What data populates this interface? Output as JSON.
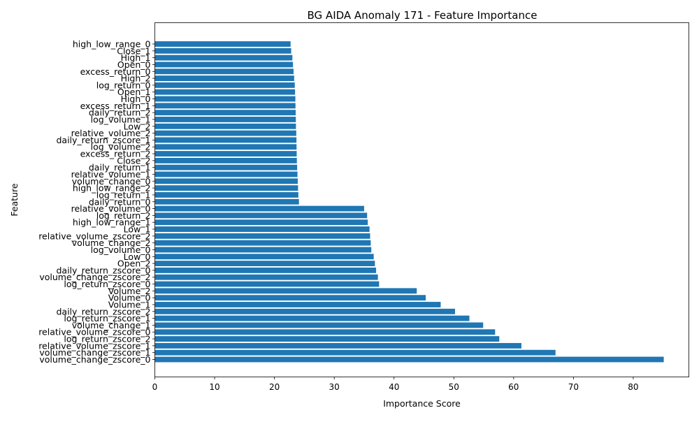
{
  "chart_data": {
    "type": "bar",
    "orientation": "horizontal",
    "title": "BG AIDA Anomaly 171 - Feature Importance",
    "xlabel": "Importance Score",
    "ylabel": "Feature",
    "xlim": [
      0,
      89.3
    ],
    "xticks": [
      0,
      10,
      20,
      30,
      40,
      50,
      60,
      70,
      80
    ],
    "grid": false,
    "bar_color": "#1f77b4",
    "categories": [
      "volume_change_zscore_0",
      "volume_change_zscore_1",
      "relative_volume_zscore_1",
      "log_return_zscore_2",
      "relative_volume_zscore_0",
      "volume_change_1",
      "log_return_zscore_1",
      "daily_return_zscore_2",
      "Volume_1",
      "Volume_0",
      "Volume_2",
      "log_return_zscore_0",
      "volume_change_zscore_2",
      "daily_return_zscore_0",
      "Open_2",
      "Low_0",
      "log_volume_0",
      "volume_change_2",
      "relative_volume_zscore_2",
      "Low_1",
      "high_low_range_1",
      "log_return_2",
      "relative_volume_0",
      "daily_return_0",
      "log_return_1",
      "high_low_range_2",
      "volume_change_0",
      "relative_volume_1",
      "daily_return_1",
      "Close_2",
      "excess_return_2",
      "log_volume_2",
      "daily_return_zscore_1",
      "relative_volume_2",
      "Low_2",
      "log_volume_1",
      "daily_return_2",
      "excess_return_1",
      "High_0",
      "Open_1",
      "log_return_0",
      "High_2",
      "excess_return_0",
      "Open_0",
      "High_1",
      "Close_1",
      "high_low_range_0"
    ],
    "values": [
      85.1,
      67.0,
      61.3,
      57.6,
      56.9,
      54.9,
      52.6,
      50.2,
      47.8,
      45.3,
      43.8,
      37.5,
      37.3,
      37.0,
      36.8,
      36.6,
      36.2,
      36.1,
      36.0,
      35.9,
      35.6,
      35.5,
      35.0,
      24.1,
      24.0,
      23.95,
      23.9,
      23.85,
      23.8,
      23.75,
      23.72,
      23.7,
      23.68,
      23.65,
      23.6,
      23.58,
      23.55,
      23.52,
      23.5,
      23.45,
      23.4,
      23.3,
      23.2,
      23.1,
      23.0,
      22.8,
      22.7
    ]
  }
}
